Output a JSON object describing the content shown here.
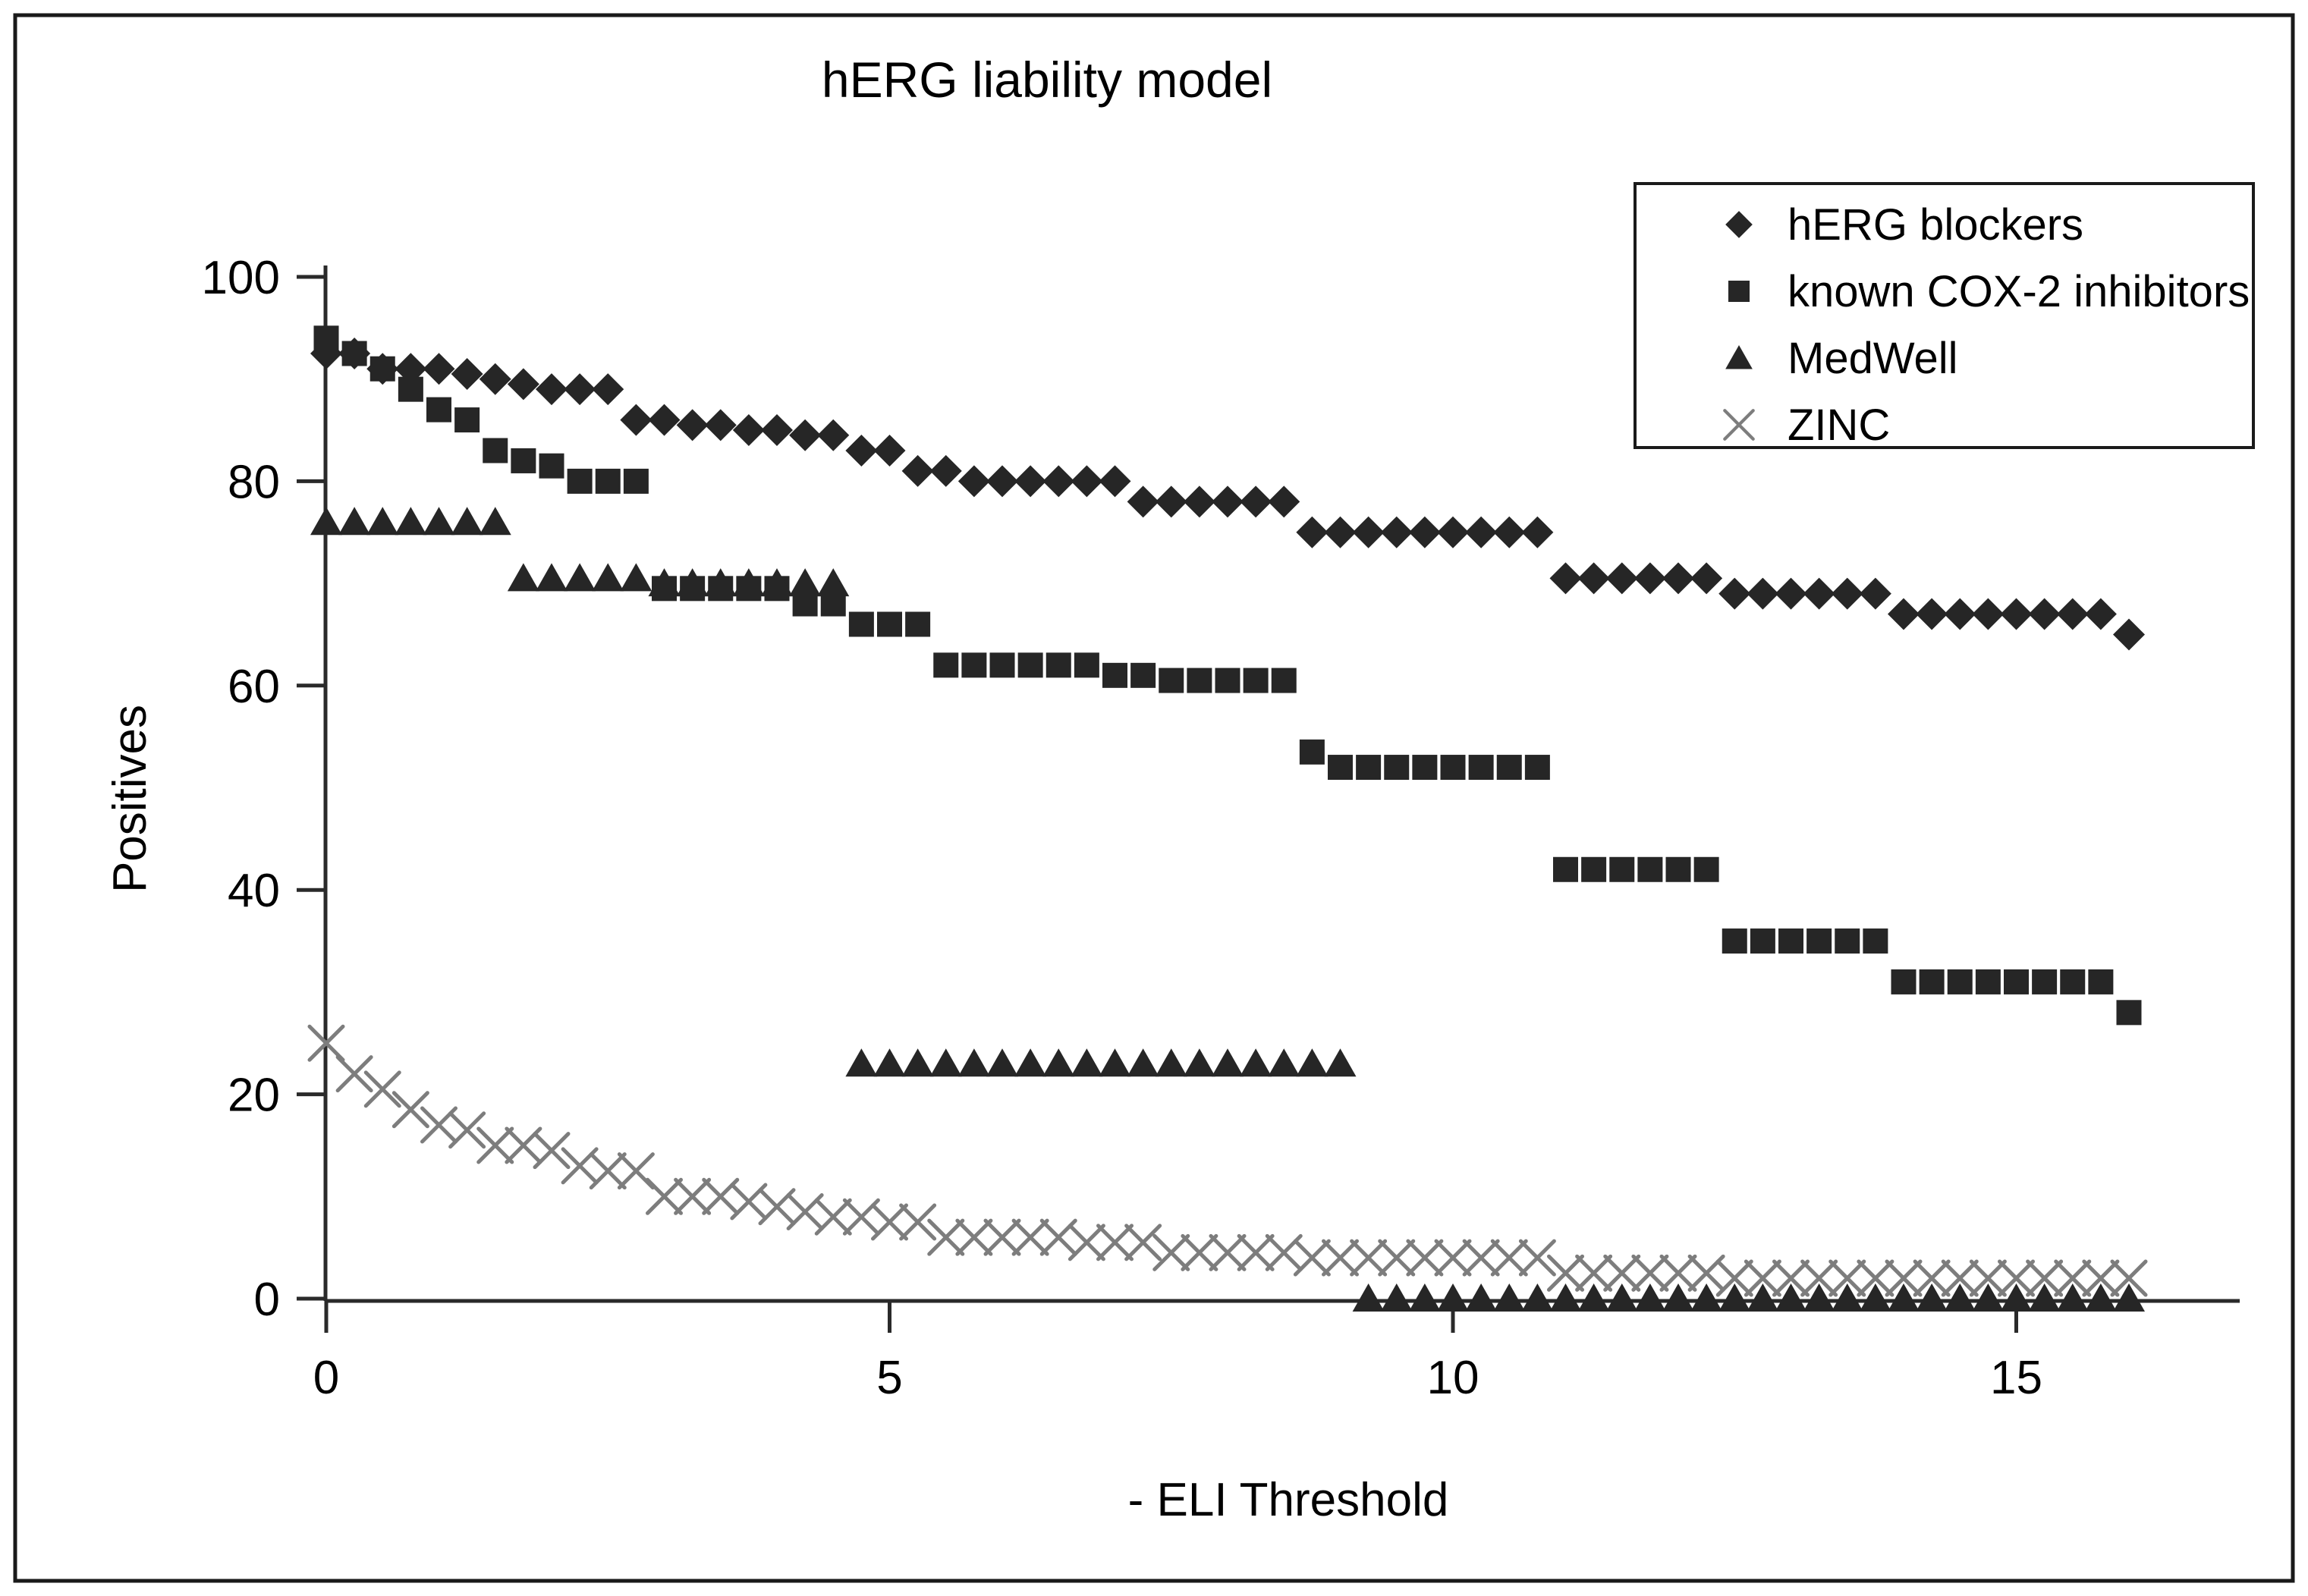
{
  "title": "hERG liability model",
  "y_axis": {
    "label": "Positives",
    "ticks": [
      0,
      20,
      40,
      60,
      80,
      100
    ],
    "range": [
      0,
      100
    ]
  },
  "x_axis": {
    "label": "- ELI Threshold",
    "ticks": [
      0,
      5,
      10,
      15
    ],
    "range": [
      0,
      17
    ]
  },
  "legend": {
    "items": [
      {
        "label": "hERG blockers",
        "marker": "diamond"
      },
      {
        "label": "known COX-2 inhibitors",
        "marker": "square"
      },
      {
        "label": "MedWell",
        "marker": "triangle"
      },
      {
        "label": "ZINC",
        "marker": "x"
      }
    ]
  },
  "colors": {
    "marker_dark": "#262626",
    "zinc_gray": "#7d7d7d",
    "axis": "#2a2a2a",
    "text": "#000000",
    "background": "#ffffff"
  },
  "chart_data": {
    "type": "scatter",
    "title": "hERG liability model",
    "xlabel": "- ELI Threshold",
    "ylabel": "Positives",
    "xlim": [
      0,
      17
    ],
    "ylim": [
      0,
      100
    ],
    "grid": false,
    "legend_position": "upper right",
    "x_start": 0,
    "x_step": 0.25,
    "series": [
      {
        "name": "hERG blockers",
        "marker": "diamond",
        "color": "#262626",
        "values": [
          92.5,
          92.5,
          91,
          91,
          91,
          90.5,
          90,
          89.5,
          89,
          89,
          89,
          86,
          86,
          85.5,
          85.5,
          85,
          85,
          84.5,
          84.5,
          83,
          83,
          81,
          81,
          80,
          80,
          80,
          80,
          80,
          80,
          78,
          78,
          78,
          78,
          78,
          78,
          75,
          75,
          75,
          75,
          75,
          75,
          75,
          75,
          75,
          70.5,
          70.5,
          70.5,
          70.5,
          70.5,
          70.5,
          69,
          69,
          69,
          69,
          69,
          69,
          67,
          67,
          67,
          67,
          67,
          67,
          67,
          67,
          65
        ]
      },
      {
        "name": "known COX-2 inhibitors",
        "marker": "square",
        "color": "#262626",
        "values": [
          94,
          92.5,
          91,
          89,
          87,
          86,
          83,
          82,
          81.5,
          80,
          80,
          80,
          69.5,
          69.5,
          69.5,
          69.5,
          69.5,
          68,
          68,
          66,
          66,
          66,
          62,
          62,
          62,
          62,
          62,
          62,
          61,
          61,
          60.5,
          60.5,
          60.5,
          60.5,
          60.5,
          53.5,
          52,
          52,
          52,
          52,
          52,
          52,
          52,
          52,
          42,
          42,
          42,
          42,
          42,
          42,
          35,
          35,
          35,
          35,
          35,
          35,
          31,
          31,
          31,
          31,
          31,
          31,
          31,
          31,
          28
        ]
      },
      {
        "name": "MedWell",
        "marker": "triangle",
        "color": "#262626",
        "values": [
          76,
          76,
          76,
          76,
          76,
          76,
          76,
          70.5,
          70.5,
          70.5,
          70.5,
          70.5,
          70,
          70,
          70,
          70,
          70,
          70,
          70,
          23,
          23,
          23,
          23,
          23,
          23,
          23,
          23,
          23,
          23,
          23,
          23,
          23,
          23,
          23,
          23,
          23,
          23,
          0,
          0,
          0,
          0,
          0,
          0,
          0,
          0,
          0,
          0,
          0,
          0,
          0,
          0,
          0,
          0,
          0,
          0,
          0,
          0,
          0,
          0,
          0,
          0,
          0,
          0,
          0,
          0
        ]
      },
      {
        "name": "ZINC",
        "marker": "x",
        "color": "#7d7d7d",
        "values": [
          25,
          22,
          20.5,
          18.5,
          17,
          16.5,
          15,
          15,
          14.5,
          13,
          12.5,
          12.5,
          10,
          10,
          10,
          9.5,
          9,
          8.5,
          8,
          8,
          7.5,
          7.5,
          6,
          6,
          6,
          6,
          6,
          5.5,
          5.5,
          5.5,
          4.5,
          4.5,
          4.5,
          4.5,
          4.5,
          4,
          4,
          4,
          4,
          4,
          4,
          4,
          4,
          4,
          2.5,
          2.5,
          2.5,
          2.5,
          2.5,
          2.5,
          2,
          2,
          2,
          2,
          2,
          2,
          2,
          2,
          2,
          2,
          2,
          2,
          2,
          2,
          2
        ]
      }
    ]
  }
}
